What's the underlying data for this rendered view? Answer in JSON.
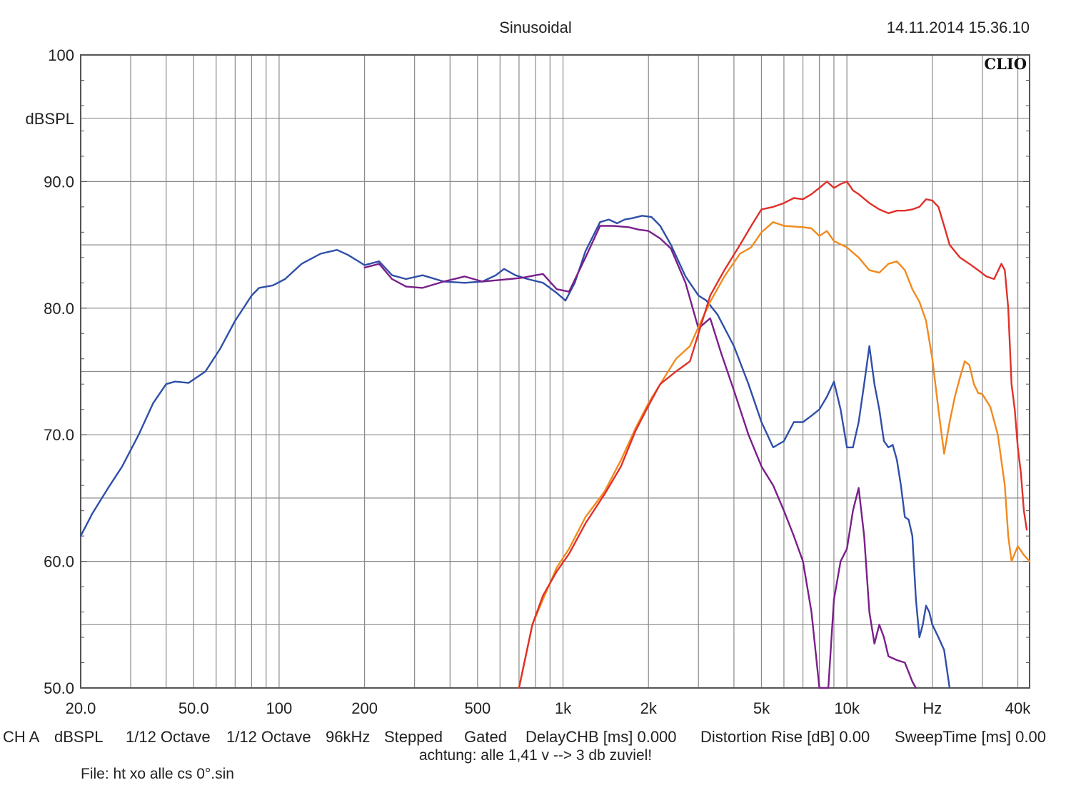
{
  "header": {
    "title": "Sinusoidal",
    "timestamp": "14.11.2014 15.36.10",
    "brand": "CLIO"
  },
  "footer": {
    "items": [
      "CH A",
      "dBSPL",
      "1/12 Octave",
      "1/12 Octave",
      "96kHz",
      "Stepped",
      "Gated",
      "DelayCHB [ms] 0.000",
      "Distortion Rise [dB] 0.00",
      "SweepTime [ms] 0.00"
    ],
    "note": "achtung: alle 1,41 v --> 3 db zuviel!",
    "file": "File: ht xo alle cs 0°.sin"
  },
  "chart_data": {
    "type": "line",
    "x_scale": "log",
    "xlim": [
      20,
      44000
    ],
    "ylim": [
      50,
      100
    ],
    "grid": true,
    "ylabel": "dBSPL",
    "xlabel": "Hz",
    "y_ticks": [
      "100",
      "90.0",
      "80.0",
      "70.0",
      "60.0",
      "50.0"
    ],
    "x_ticks": [
      {
        "value": 20,
        "label": "20.0"
      },
      {
        "value": 50,
        "label": "50.0"
      },
      {
        "value": 100,
        "label": "100"
      },
      {
        "value": 200,
        "label": "200"
      },
      {
        "value": 500,
        "label": "500"
      },
      {
        "value": 1000,
        "label": "1k"
      },
      {
        "value": 2000,
        "label": "2k"
      },
      {
        "value": 5000,
        "label": "5k"
      },
      {
        "value": 10000,
        "label": "10k"
      },
      {
        "value": 20000,
        "label": "Hz"
      },
      {
        "value": 40000,
        "label": "40k"
      }
    ],
    "series": [
      {
        "color": "#2f4fa8",
        "points": [
          [
            20,
            62
          ],
          [
            22,
            63.8
          ],
          [
            25,
            65.8
          ],
          [
            28,
            67.5
          ],
          [
            32,
            70
          ],
          [
            36,
            72.5
          ],
          [
            40,
            74
          ],
          [
            43,
            74.2
          ],
          [
            48,
            74.1
          ],
          [
            55,
            75
          ],
          [
            62,
            76.8
          ],
          [
            70,
            79
          ],
          [
            80,
            81
          ],
          [
            85,
            81.6
          ],
          [
            95,
            81.8
          ],
          [
            105,
            82.3
          ],
          [
            120,
            83.5
          ],
          [
            140,
            84.3
          ],
          [
            160,
            84.6
          ],
          [
            175,
            84.2
          ],
          [
            200,
            83.4
          ],
          [
            225,
            83.7
          ],
          [
            250,
            82.6
          ],
          [
            280,
            82.3
          ],
          [
            320,
            82.6
          ],
          [
            380,
            82.1
          ],
          [
            450,
            82
          ],
          [
            520,
            82.1
          ],
          [
            580,
            82.6
          ],
          [
            620,
            83.1
          ],
          [
            680,
            82.6
          ],
          [
            750,
            82.3
          ],
          [
            850,
            82
          ],
          [
            950,
            81.2
          ],
          [
            1020,
            80.6
          ],
          [
            1100,
            82
          ],
          [
            1200,
            84.5
          ],
          [
            1350,
            86.8
          ],
          [
            1450,
            87
          ],
          [
            1550,
            86.7
          ],
          [
            1650,
            87
          ],
          [
            1750,
            87.1
          ],
          [
            1900,
            87.3
          ],
          [
            2050,
            87.2
          ],
          [
            2200,
            86.5
          ],
          [
            2400,
            85
          ],
          [
            2700,
            82.5
          ],
          [
            3000,
            81
          ],
          [
            3200,
            80.6
          ],
          [
            3500,
            79.5
          ],
          [
            4000,
            77
          ],
          [
            4500,
            74
          ],
          [
            5000,
            71
          ],
          [
            5500,
            69
          ],
          [
            6000,
            69.5
          ],
          [
            6500,
            71
          ],
          [
            7000,
            71
          ],
          [
            7500,
            71.5
          ],
          [
            8000,
            72
          ],
          [
            8500,
            73
          ],
          [
            9000,
            74.2
          ],
          [
            9500,
            72
          ],
          [
            10000,
            69
          ],
          [
            10500,
            69
          ],
          [
            11000,
            71
          ],
          [
            11500,
            74
          ],
          [
            12000,
            77
          ],
          [
            12500,
            74
          ],
          [
            13000,
            72
          ],
          [
            13500,
            69.5
          ],
          [
            14000,
            69
          ],
          [
            14500,
            69.2
          ],
          [
            15000,
            68
          ],
          [
            15500,
            66
          ],
          [
            16000,
            63.5
          ],
          [
            16500,
            63.3
          ],
          [
            17000,
            62
          ],
          [
            17500,
            57
          ],
          [
            18000,
            54
          ],
          [
            18500,
            55
          ],
          [
            19000,
            56.5
          ],
          [
            19500,
            56
          ],
          [
            20000,
            55
          ],
          [
            21000,
            54
          ],
          [
            22000,
            53
          ],
          [
            23000,
            50
          ]
        ]
      },
      {
        "color": "#7a1f8a",
        "points": [
          [
            200,
            83.2
          ],
          [
            225,
            83.5
          ],
          [
            250,
            82.3
          ],
          [
            280,
            81.7
          ],
          [
            320,
            81.6
          ],
          [
            380,
            82.1
          ],
          [
            450,
            82.5
          ],
          [
            520,
            82.1
          ],
          [
            580,
            82.2
          ],
          [
            650,
            82.3
          ],
          [
            720,
            82.4
          ],
          [
            800,
            82.6
          ],
          [
            850,
            82.7
          ],
          [
            950,
            81.5
          ],
          [
            1050,
            81.3
          ],
          [
            1200,
            84
          ],
          [
            1350,
            86.5
          ],
          [
            1500,
            86.5
          ],
          [
            1700,
            86.4
          ],
          [
            1850,
            86.2
          ],
          [
            2000,
            86.1
          ],
          [
            2200,
            85.5
          ],
          [
            2400,
            84.7
          ],
          [
            2700,
            82
          ],
          [
            3000,
            78.4
          ],
          [
            3300,
            79.2
          ],
          [
            3600,
            76.5
          ],
          [
            4000,
            73.5
          ],
          [
            4500,
            70
          ],
          [
            5000,
            67.5
          ],
          [
            5500,
            66
          ],
          [
            6000,
            64
          ],
          [
            6500,
            62
          ],
          [
            7000,
            60
          ],
          [
            7500,
            56
          ],
          [
            8000,
            50
          ],
          [
            8600,
            50
          ],
          [
            9000,
            57
          ],
          [
            9500,
            60
          ],
          [
            10000,
            61
          ],
          [
            10500,
            64
          ],
          [
            11000,
            65.8
          ],
          [
            11500,
            62
          ],
          [
            12000,
            56
          ],
          [
            12500,
            53.5
          ],
          [
            13000,
            55
          ],
          [
            13500,
            54
          ],
          [
            14000,
            52.5
          ],
          [
            15000,
            52.2
          ],
          [
            16000,
            52
          ],
          [
            17000,
            50.5
          ],
          [
            17500,
            50
          ]
        ]
      },
      {
        "color": "#f28a1e",
        "points": [
          [
            700,
            50
          ],
          [
            780,
            55
          ],
          [
            850,
            57
          ],
          [
            950,
            59.5
          ],
          [
            1050,
            61
          ],
          [
            1200,
            63.5
          ],
          [
            1400,
            65.5
          ],
          [
            1600,
            68
          ],
          [
            1800,
            70.5
          ],
          [
            2000,
            72.5
          ],
          [
            2200,
            74
          ],
          [
            2500,
            76
          ],
          [
            2800,
            77
          ],
          [
            3000,
            78.5
          ],
          [
            3300,
            80.5
          ],
          [
            3700,
            82.5
          ],
          [
            4200,
            84.3
          ],
          [
            4600,
            84.8
          ],
          [
            5000,
            86
          ],
          [
            5500,
            86.8
          ],
          [
            6000,
            86.5
          ],
          [
            7000,
            86.4
          ],
          [
            7500,
            86.3
          ],
          [
            8000,
            85.7
          ],
          [
            8500,
            86.1
          ],
          [
            9000,
            85.3
          ],
          [
            10000,
            84.8
          ],
          [
            11000,
            84
          ],
          [
            12000,
            83
          ],
          [
            13000,
            82.8
          ],
          [
            14000,
            83.5
          ],
          [
            15000,
            83.7
          ],
          [
            16000,
            83
          ],
          [
            17000,
            81.5
          ],
          [
            18000,
            80.5
          ],
          [
            19000,
            79
          ],
          [
            20000,
            76
          ],
          [
            21000,
            72
          ],
          [
            22000,
            68.5
          ],
          [
            23000,
            71
          ],
          [
            24000,
            73
          ],
          [
            25000,
            74.5
          ],
          [
            26000,
            75.8
          ],
          [
            27000,
            75.5
          ],
          [
            28000,
            74
          ],
          [
            29000,
            73.3
          ],
          [
            30000,
            73.2
          ],
          [
            32000,
            72.2
          ],
          [
            34000,
            70
          ],
          [
            36000,
            66
          ],
          [
            37000,
            62
          ],
          [
            38000,
            60
          ],
          [
            40000,
            61.2
          ],
          [
            42000,
            60.5
          ],
          [
            44000,
            60
          ]
        ]
      },
      {
        "color": "#e0302a",
        "points": [
          [
            700,
            50
          ],
          [
            780,
            55
          ],
          [
            850,
            57.3
          ],
          [
            950,
            59.2
          ],
          [
            1050,
            60.6
          ],
          [
            1200,
            63
          ],
          [
            1400,
            65.3
          ],
          [
            1600,
            67.5
          ],
          [
            1800,
            70.3
          ],
          [
            2000,
            72.3
          ],
          [
            2200,
            74
          ],
          [
            2500,
            75
          ],
          [
            2800,
            75.8
          ],
          [
            3000,
            78
          ],
          [
            3300,
            81
          ],
          [
            3700,
            83
          ],
          [
            4200,
            85
          ],
          [
            4600,
            86.5
          ],
          [
            5000,
            87.8
          ],
          [
            5500,
            88
          ],
          [
            6000,
            88.3
          ],
          [
            6500,
            88.7
          ],
          [
            7000,
            88.6
          ],
          [
            7500,
            89
          ],
          [
            8000,
            89.5
          ],
          [
            8500,
            90
          ],
          [
            9000,
            89.5
          ],
          [
            9500,
            89.8
          ],
          [
            10000,
            90
          ],
          [
            10500,
            89.3
          ],
          [
            11000,
            89
          ],
          [
            12000,
            88.3
          ],
          [
            13000,
            87.8
          ],
          [
            14000,
            87.5
          ],
          [
            15000,
            87.7
          ],
          [
            16000,
            87.7
          ],
          [
            17000,
            87.8
          ],
          [
            18000,
            88
          ],
          [
            19000,
            88.6
          ],
          [
            20000,
            88.5
          ],
          [
            21000,
            88
          ],
          [
            22000,
            86.5
          ],
          [
            23000,
            85
          ],
          [
            25000,
            84
          ],
          [
            27000,
            83.5
          ],
          [
            29000,
            83
          ],
          [
            31000,
            82.5
          ],
          [
            33000,
            82.3
          ],
          [
            35000,
            83.5
          ],
          [
            36000,
            83
          ],
          [
            37000,
            80
          ],
          [
            38000,
            74
          ],
          [
            39000,
            72
          ],
          [
            40000,
            69
          ],
          [
            41000,
            67
          ],
          [
            42000,
            64
          ],
          [
            43000,
            62.5
          ]
        ]
      }
    ]
  }
}
